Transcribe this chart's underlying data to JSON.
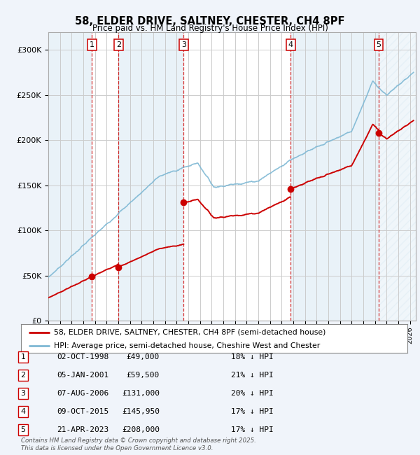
{
  "title": "58, ELDER DRIVE, SALTNEY, CHESTER, CH4 8PF",
  "subtitle": "Price paid vs. HM Land Registry's House Price Index (HPI)",
  "xlim_start": 1995.0,
  "xlim_end": 2026.5,
  "ylim_min": 0,
  "ylim_max": 320000,
  "yticks": [
    0,
    50000,
    100000,
    150000,
    200000,
    250000,
    300000
  ],
  "ytick_labels": [
    "£0",
    "£50K",
    "£100K",
    "£150K",
    "£200K",
    "£250K",
    "£300K"
  ],
  "bg_color": "#f0f4fa",
  "plot_bg_color": "#ffffff",
  "grid_color": "#cccccc",
  "hpi_line_color": "#7eb8d4",
  "price_line_color": "#cc0000",
  "shade_color": "#d0e4f0",
  "purchases": [
    {
      "num": 1,
      "date_x": 1998.75,
      "price": 49000
    },
    {
      "num": 2,
      "date_x": 2001.02,
      "price": 59500
    },
    {
      "num": 3,
      "date_x": 2006.6,
      "price": 131000
    },
    {
      "num": 4,
      "date_x": 2015.77,
      "price": 145950
    },
    {
      "num": 5,
      "date_x": 2023.31,
      "price": 208000
    }
  ],
  "legend_line1": "58, ELDER DRIVE, SALTNEY, CHESTER, CH4 8PF (semi-detached house)",
  "legend_line2": "HPI: Average price, semi-detached house, Cheshire West and Chester",
  "footer": "Contains HM Land Registry data © Crown copyright and database right 2025.\nThis data is licensed under the Open Government Licence v3.0.",
  "table_rows": [
    [
      "1",
      "02-OCT-1998",
      "£49,000",
      "18% ↓ HPI"
    ],
    [
      "2",
      "05-JAN-2001",
      "£59,500",
      "21% ↓ HPI"
    ],
    [
      "3",
      "07-AUG-2006",
      "£131,000",
      "20% ↓ HPI"
    ],
    [
      "4",
      "09-OCT-2015",
      "£145,950",
      "17% ↓ HPI"
    ],
    [
      "5",
      "21-APR-2023",
      "£208,000",
      "17% ↓ HPI"
    ]
  ]
}
